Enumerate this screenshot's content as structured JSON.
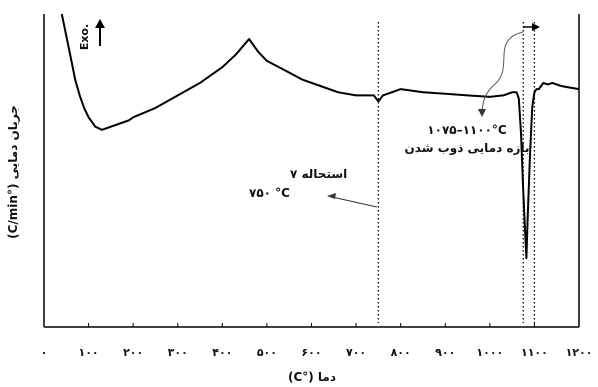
{
  "chart_data": {
    "type": "line",
    "xlabel": "دما (°C)",
    "ylabel": "جریان دمایی (°C/min)",
    "x_ticks": [
      "۰",
      "۱۰۰",
      "۲۰۰",
      "۳۰۰",
      "۴۰۰",
      "۵۰۰",
      "۶۰۰",
      "۷۰۰",
      "۸۰۰",
      "۹۰۰",
      "۱۰۰۰",
      "۱۱۰۰",
      "۱۲۰۰"
    ],
    "x_tick_values": [
      0,
      100,
      200,
      300,
      400,
      500,
      600,
      700,
      800,
      900,
      1000,
      1100,
      1200
    ],
    "xlim": [
      0,
      1200
    ],
    "ylim": [
      0,
      100
    ],
    "y_ticks_shown": false,
    "exo_marker": "Exo.",
    "series": [
      {
        "x": [
          40,
          50,
          60,
          70,
          80,
          90,
          100,
          115,
          130,
          150,
          170,
          190,
          200,
          250,
          300,
          350,
          400,
          430,
          460,
          480,
          500,
          540,
          580,
          620,
          660,
          700,
          740,
          750,
          760,
          780,
          800,
          850,
          900,
          950,
          1000,
          1030,
          1050,
          1060,
          1065,
          1070,
          1075,
          1080,
          1082,
          1085,
          1090,
          1095,
          1100,
          1105,
          1110,
          1115,
          1120,
          1130,
          1140,
          1160,
          1180,
          1200
        ],
        "y": [
          100,
          93,
          86,
          79,
          74,
          70,
          67,
          64,
          63,
          64,
          65,
          66,
          67,
          70,
          74,
          78,
          83,
          87,
          92,
          88,
          85,
          82,
          79,
          77,
          75,
          74,
          74,
          72,
          74,
          75,
          76,
          75,
          74.5,
          74,
          73.5,
          74,
          75,
          75,
          73,
          62,
          43,
          28,
          22,
          35,
          55,
          70,
          75,
          76,
          76,
          77,
          78,
          77.5,
          78,
          77,
          76.5,
          76
        ]
      }
    ],
    "vlines": [
      {
        "x": 750,
        "style": "dotted"
      },
      {
        "x": 1075,
        "style": "dotted"
      },
      {
        "x": 1100,
        "style": "dotted"
      }
    ],
    "annotations": [
      {
        "lines": [
          "استحاله ۷",
          "۷۵۰ °C"
        ]
      },
      {
        "lines": [
          "۱۰۷۵–۱۱۰۰°C",
          "بازه دمایی ذوب شدن"
        ]
      }
    ]
  }
}
